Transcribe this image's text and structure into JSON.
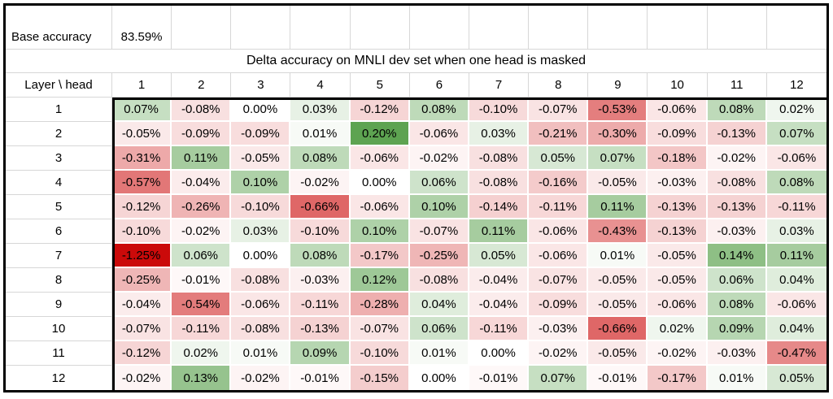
{
  "table": {
    "base_accuracy_label": "Base accuracy",
    "base_accuracy_value": "83.59%",
    "title": "Delta accuracy on MNLI dev set when one head is masked",
    "corner_label": "Layer \\ head"
  },
  "colors": {
    "grid_line": "#d7d7d7",
    "frame": "#000000",
    "cell_gap": "#ffffff",
    "text": "#000000",
    "background": "#ffffff"
  },
  "chart_data": {
    "type": "heatmap",
    "title": "Delta accuracy on MNLI dev set when one head is masked",
    "xlabel": "head",
    "ylabel": "Layer",
    "base_accuracy": "83.59%",
    "x_labels": [
      "1",
      "2",
      "3",
      "4",
      "5",
      "6",
      "7",
      "8",
      "9",
      "10",
      "11",
      "12"
    ],
    "y_labels": [
      "1",
      "2",
      "3",
      "4",
      "5",
      "6",
      "7",
      "8",
      "9",
      "10",
      "11",
      "12"
    ],
    "value_suffix": "%",
    "values_percent": [
      [
        0.07,
        -0.08,
        0.0,
        0.03,
        -0.12,
        0.08,
        -0.1,
        -0.07,
        -0.53,
        -0.06,
        0.08,
        0.02
      ],
      [
        -0.05,
        -0.09,
        -0.09,
        0.01,
        0.2,
        -0.06,
        0.03,
        -0.21,
        -0.3,
        -0.09,
        -0.13,
        0.07
      ],
      [
        -0.31,
        0.11,
        -0.05,
        0.08,
        -0.06,
        -0.02,
        -0.08,
        0.05,
        0.07,
        -0.18,
        -0.02,
        -0.06
      ],
      [
        -0.57,
        -0.04,
        0.1,
        -0.02,
        0.0,
        0.06,
        -0.08,
        -0.16,
        -0.05,
        -0.03,
        -0.08,
        0.08
      ],
      [
        -0.12,
        -0.26,
        -0.1,
        -0.66,
        -0.06,
        0.1,
        -0.14,
        -0.11,
        0.11,
        -0.13,
        -0.13,
        -0.11
      ],
      [
        -0.1,
        -0.02,
        0.03,
        -0.1,
        0.1,
        -0.07,
        0.11,
        -0.06,
        -0.43,
        -0.13,
        -0.03,
        0.03
      ],
      [
        -1.25,
        0.06,
        0.0,
        0.08,
        -0.17,
        -0.25,
        0.05,
        -0.06,
        0.01,
        -0.05,
        0.14,
        0.11
      ],
      [
        -0.25,
        -0.01,
        -0.08,
        -0.03,
        0.12,
        -0.08,
        -0.04,
        -0.07,
        -0.05,
        -0.05,
        0.06,
        0.04
      ],
      [
        -0.04,
        -0.54,
        -0.06,
        -0.11,
        -0.28,
        0.04,
        -0.04,
        -0.09,
        -0.05,
        -0.06,
        0.08,
        -0.06
      ],
      [
        -0.07,
        -0.11,
        -0.08,
        -0.13,
        -0.07,
        0.06,
        -0.11,
        -0.03,
        -0.66,
        0.02,
        0.09,
        0.04
      ],
      [
        -0.12,
        0.02,
        0.01,
        0.09,
        -0.1,
        0.01,
        0.0,
        -0.02,
        -0.05,
        -0.02,
        -0.03,
        -0.47
      ],
      [
        -0.02,
        0.13,
        -0.02,
        -0.01,
        -0.15,
        0.0,
        -0.01,
        0.07,
        -0.01,
        -0.17,
        0.01,
        0.05
      ]
    ],
    "colorscale": {
      "min": -1.25,
      "max": 0.2,
      "negative_color": "#cb0a0a",
      "positive_color": "#5da351",
      "zero_color": "#ffffff",
      "negative_gamma": 0.75,
      "positive_gamma": 1.0
    },
    "legend_position": "none",
    "grid": true
  }
}
